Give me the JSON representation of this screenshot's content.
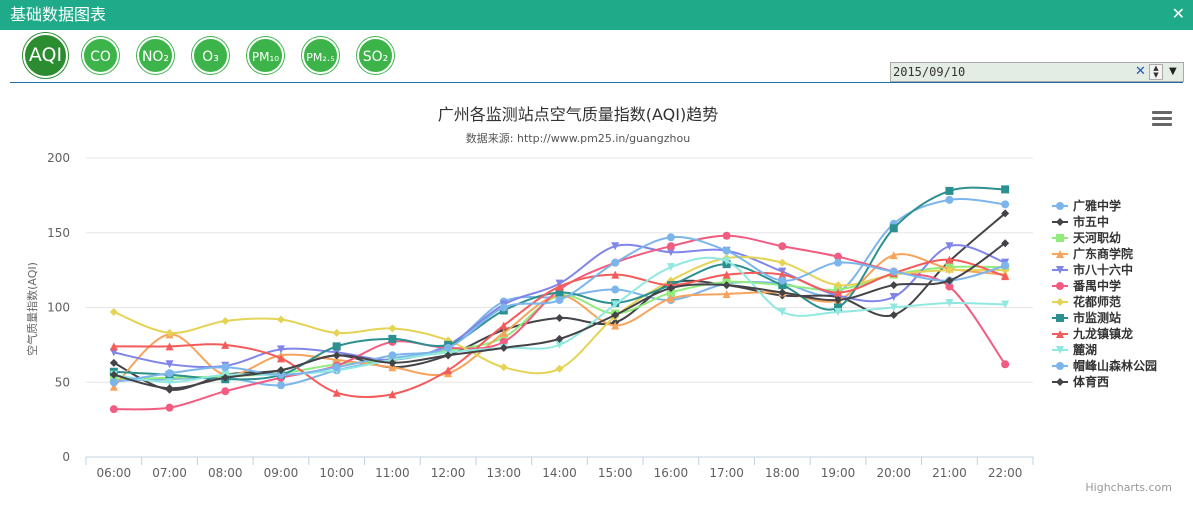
{
  "window": {
    "title": "基础数据图表",
    "close_glyph": "✕"
  },
  "tabs": [
    {
      "label": "AQI",
      "active": true
    },
    {
      "label": "CO",
      "active": false
    },
    {
      "label": "NO₂",
      "active": false
    },
    {
      "label": "O₃",
      "active": false
    },
    {
      "label": "PM₁₀",
      "active": false
    },
    {
      "label": "PM₂.₅",
      "active": false
    },
    {
      "label": "SO₂",
      "active": false
    }
  ],
  "date_picker": {
    "value": "2015/09/10",
    "clear_glyph": "✕",
    "dropdown_glyph": "▼",
    "up_glyph": "▲",
    "down_glyph": "▼"
  },
  "menu": {
    "icon": "hamburger-menu-icon"
  },
  "colors": {
    "header": "#1fab89",
    "tab": "#3db449",
    "tab_active": "#2b8d2f"
  },
  "chart_data": {
    "type": "line",
    "title": "广州各监测站点空气质量指数(AQI)趋势",
    "subtitle": "数据来源: http://www.pm25.in/guangzhou",
    "xlabel": "",
    "ylabel": "空气质量指数(AQI)",
    "ylim": [
      0,
      200
    ],
    "yticks": [
      0,
      50,
      100,
      150,
      200
    ],
    "categories": [
      "06:00",
      "07:00",
      "08:00",
      "09:00",
      "10:00",
      "11:00",
      "12:00",
      "13:00",
      "14:00",
      "15:00",
      "16:00",
      "17:00",
      "18:00",
      "19:00",
      "20:00",
      "21:00",
      "22:00"
    ],
    "grid": true,
    "legend_position": "right",
    "credits": "Highcharts.com",
    "series": [
      {
        "name": "广雅中学",
        "color": "#7cb5ec",
        "marker": "circle",
        "values": [
          51,
          52,
          53,
          48,
          58,
          66,
          74,
          104,
          107,
          112,
          105,
          116,
          116,
          110,
          156,
          172,
          169
        ]
      },
      {
        "name": "市五中",
        "color": "#434348",
        "marker": "diamond",
        "values": [
          63,
          45,
          55,
          58,
          68,
          60,
          68,
          85,
          93,
          90,
          116,
          115,
          108,
          107,
          95,
          131,
          163
        ]
      },
      {
        "name": "天河职幼",
        "color": "#90ed7d",
        "marker": "square",
        "values": [
          52,
          53,
          54,
          56,
          62,
          65,
          71,
          80,
          108,
          96,
          110,
          117,
          115,
          112,
          122,
          127,
          127
        ]
      },
      {
        "name": "广东商学院",
        "color": "#f7a35c",
        "marker": "triangle",
        "values": [
          47,
          82,
          55,
          68,
          65,
          60,
          56,
          83,
          108,
          88,
          106,
          109,
          110,
          105,
          135,
          126,
          122
        ]
      },
      {
        "name": "市八十六中",
        "color": "#8085e9",
        "marker": "triangle-down",
        "values": [
          70,
          62,
          61,
          72,
          70,
          65,
          75,
          102,
          116,
          141,
          137,
          138,
          124,
          108,
          107,
          141,
          130
        ]
      },
      {
        "name": "番禺中学",
        "color": "#f15c80",
        "marker": "circle",
        "values": [
          32,
          33,
          44,
          53,
          61,
          77,
          73,
          77,
          112,
          130,
          141,
          148,
          141,
          134,
          124,
          114,
          62
        ]
      },
      {
        "name": "花都师范",
        "color": "#e4d354",
        "marker": "diamond",
        "values": [
          97,
          83,
          91,
          92,
          83,
          86,
          78,
          60,
          59,
          94,
          118,
          133,
          130,
          115,
          122,
          125,
          125
        ]
      },
      {
        "name": "市监测站",
        "color": "#2b908f",
        "marker": "square",
        "values": [
          57,
          55,
          52,
          55,
          74,
          79,
          75,
          98,
          110,
          103,
          115,
          129,
          115,
          100,
          153,
          178,
          179
        ]
      },
      {
        "name": "九龙镇镇龙",
        "color": "#f45b5b",
        "marker": "triangle",
        "values": [
          74,
          74,
          75,
          66,
          43,
          42,
          58,
          88,
          114,
          122,
          115,
          122,
          122,
          110,
          123,
          132,
          121
        ]
      },
      {
        "name": "麓湖",
        "color": "#91e8e1",
        "marker": "triangle-down",
        "values": [
          55,
          50,
          55,
          55,
          58,
          65,
          70,
          73,
          75,
          102,
          127,
          131,
          97,
          97,
          100,
          103,
          102
        ]
      },
      {
        "name": "帽峰山森林公园",
        "color": "#7cb5ec",
        "marker": "circle",
        "values": [
          50,
          56,
          60,
          55,
          60,
          68,
          73,
          100,
          105,
          130,
          147,
          138,
          118,
          130,
          124,
          118,
          128
        ]
      },
      {
        "name": "体育西",
        "color": "#434348",
        "marker": "diamond",
        "values": [
          55,
          46,
          53,
          58,
          68,
          63,
          68,
          73,
          79,
          95,
          113,
          115,
          110,
          105,
          115,
          118,
          143
        ]
      }
    ]
  }
}
